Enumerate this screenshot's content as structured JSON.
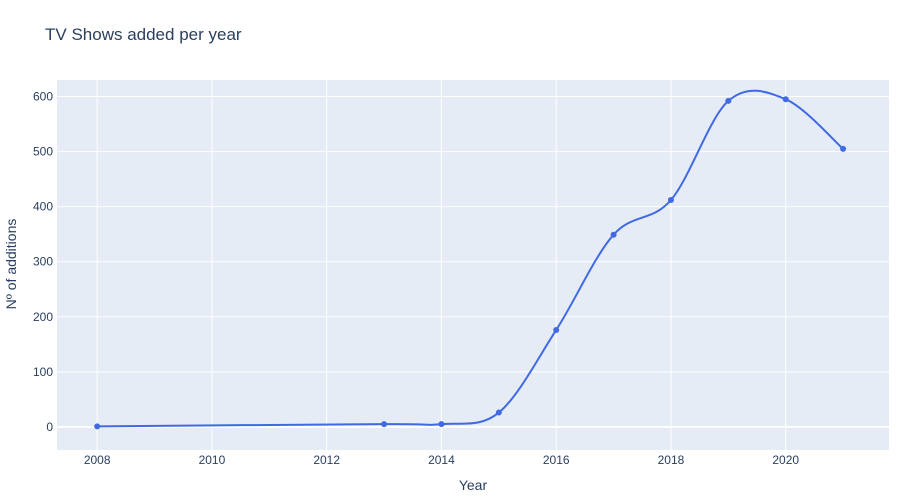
{
  "chart_data": {
    "type": "line",
    "title": "TV Shows added per year",
    "xlabel": "Year",
    "ylabel": "Nº of additions",
    "x": [
      2008,
      2013,
      2014,
      2015,
      2016,
      2017,
      2018,
      2019,
      2020,
      2021
    ],
    "series": [
      {
        "values": [
          1,
          5,
          5,
          26,
          176,
          349,
          412,
          592,
          595,
          505
        ]
      }
    ],
    "xlim": [
      2007.3,
      2021.8
    ],
    "ylim": [
      -42,
      630
    ],
    "xticks": [
      2008,
      2010,
      2012,
      2014,
      2016,
      2018,
      2020
    ],
    "yticks": [
      0,
      100,
      200,
      300,
      400,
      500,
      600
    ],
    "grid": true,
    "line_shape": "spline",
    "colors": {
      "line": "#4169e1",
      "plot_background": "#e5ecf6",
      "grid": "#ffffff",
      "text": "#2a3f5f"
    }
  }
}
